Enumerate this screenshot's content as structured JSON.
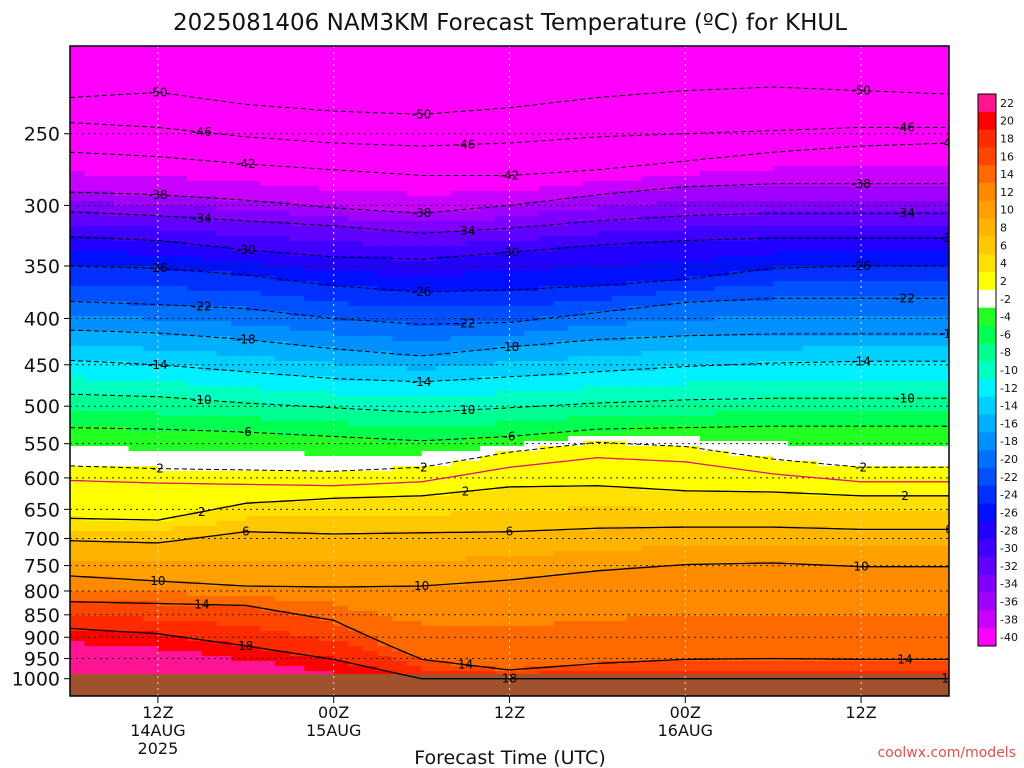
{
  "title": "2025081406 NAM3KM Forecast Temperature (ºC) for KHUL",
  "xlabel": "Forecast Time (UTC)",
  "watermark": "coolwx.com/models",
  "chart_data": {
    "type": "heatmap",
    "title": "2025081406 NAM3KM Forecast Temperature (ºC) for KHUL",
    "xlabel": "Forecast Time (UTC)",
    "ylabel": "",
    "y_scale": "log",
    "y_axis_reversed": true,
    "y_ticks": [
      250,
      300,
      350,
      400,
      450,
      500,
      550,
      600,
      650,
      700,
      750,
      800,
      850,
      900,
      950,
      1000
    ],
    "x_ticks": [
      {
        "hour": 6,
        "lines": [
          "12Z",
          "14AUG",
          "2025"
        ]
      },
      {
        "hour": 18,
        "lines": [
          "00Z",
          "15AUG"
        ]
      },
      {
        "hour": 30,
        "lines": [
          "12Z"
        ]
      },
      {
        "hour": 42,
        "lines": [
          "00Z",
          "16AUG"
        ]
      },
      {
        "hour": 54,
        "lines": [
          "12Z"
        ]
      }
    ],
    "colorbar_levels": [
      22,
      20,
      18,
      16,
      14,
      12,
      10,
      8,
      6,
      4,
      2,
      -2,
      -4,
      -6,
      -8,
      -10,
      -12,
      -14,
      -16,
      -18,
      -20,
      -22,
      -24,
      -26,
      -28,
      -30,
      -32,
      -34,
      -36,
      -38,
      -40
    ],
    "colorbar_colors": [
      "#ff1493",
      "#ff0000",
      "#ff2a00",
      "#ff4600",
      "#ff6a00",
      "#ff8a00",
      "#ffa000",
      "#ffb400",
      "#ffc800",
      "#ffe000",
      "#ffff00",
      "#ffffff",
      "#22ff22",
      "#00ff50",
      "#00ff90",
      "#00ffc0",
      "#00f0ff",
      "#00d0ff",
      "#00b0ff",
      "#0090ff",
      "#0070ff",
      "#0050ff",
      "#0030ff",
      "#0010ff",
      "#2000ff",
      "#4000ff",
      "#6000ff",
      "#8000ff",
      "#a000ff",
      "#c800ff",
      "#ff00ff"
    ],
    "contours": [
      {
        "value": -50,
        "pressure": [
          228,
          225,
          232,
          236,
          238,
          234,
          228,
          224,
          222,
          224,
          226
        ]
      },
      {
        "value": -46,
        "pressure": [
          243,
          246,
          252,
          256,
          258,
          256,
          252,
          250,
          248,
          246,
          246
        ]
      },
      {
        "value": -42,
        "pressure": [
          262,
          265,
          270,
          274,
          278,
          278,
          274,
          268,
          262,
          258,
          256
        ]
      },
      {
        "value": -38,
        "pressure": [
          290,
          292,
          296,
          302,
          306,
          300,
          292,
          286,
          284,
          284,
          284
        ]
      },
      {
        "value": -34,
        "pressure": [
          305,
          308,
          312,
          316,
          322,
          318,
          312,
          308,
          306,
          306,
          306
        ]
      },
      {
        "value": -30,
        "pressure": [
          325,
          328,
          336,
          342,
          344,
          338,
          332,
          328,
          326,
          326,
          326
        ]
      },
      {
        "value": -26,
        "pressure": [
          350,
          352,
          358,
          368,
          374,
          372,
          368,
          362,
          352,
          350,
          350
        ]
      },
      {
        "value": -22,
        "pressure": [
          383,
          386,
          390,
          400,
          406,
          404,
          394,
          384,
          380,
          380,
          380
        ]
      },
      {
        "value": -18,
        "pressure": [
          412,
          415,
          422,
          432,
          440,
          430,
          422,
          418,
          416,
          416,
          416
        ]
      },
      {
        "value": -14,
        "pressure": [
          445,
          450,
          458,
          466,
          470,
          464,
          458,
          452,
          448,
          446,
          446
        ]
      },
      {
        "value": -10,
        "pressure": [
          485,
          488,
          496,
          502,
          508,
          502,
          496,
          492,
          490,
          490,
          490
        ]
      },
      {
        "value": -6,
        "pressure": [
          528,
          530,
          534,
          540,
          546,
          540,
          530,
          528,
          526,
          526,
          526
        ]
      },
      {
        "value": -2,
        "pressure": [
          582,
          586,
          588,
          590,
          584,
          562,
          548,
          554,
          572,
          584,
          584
        ]
      },
      {
        "value": 2,
        "pressure": [
          665,
          668,
          640,
          632,
          628,
          614,
          612,
          620,
          622,
          628,
          628
        ]
      },
      {
        "value": 6,
        "pressure": [
          704,
          708,
          688,
          692,
          690,
          688,
          682,
          680,
          680,
          684,
          684
        ]
      },
      {
        "value": 10,
        "pressure": [
          770,
          780,
          790,
          792,
          790,
          778,
          760,
          748,
          745,
          752,
          752
        ]
      },
      {
        "value": 14,
        "pressure": [
          822,
          826,
          830,
          862,
          952,
          978,
          962,
          952,
          950,
          952,
          952
        ]
      },
      {
        "value": 18,
        "pressure": [
          880,
          892,
          920,
          952,
          1000,
          1000,
          1000,
          1000,
          1000,
          1000,
          1000
        ]
      }
    ],
    "contour_hours": [
      0,
      6,
      12,
      18,
      24,
      30,
      36,
      42,
      48,
      54,
      60
    ]
  }
}
